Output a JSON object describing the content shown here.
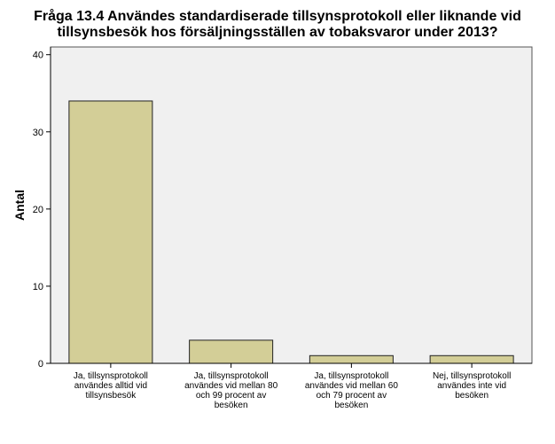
{
  "colors": {
    "plot_background": "#f0f0f0",
    "bar_fill": "#d3ce97",
    "bar_stroke": "#222222",
    "axis": "#000000"
  },
  "chart_data": {
    "type": "bar",
    "title_lines": [
      "Fråga 13.4 Användes standardiserade tillsynsprotokoll eller liknande vid",
      "tillsynsbesök hos försäljningsställen av tobaksvaror under 2013?"
    ],
    "ylabel": "Antal",
    "xlabel": "",
    "ylim": [
      0,
      41
    ],
    "yticks": [
      0,
      10,
      20,
      30,
      40
    ],
    "grid": false,
    "categories": [
      [
        "Ja, tillsynsprotokoll",
        "användes alltid vid",
        "tillsynsbesök"
      ],
      [
        "Ja, tillsynsprotokoll",
        "användes vid mellan 80",
        "och 99 procent av",
        "besöken"
      ],
      [
        "Ja, tillsynsprotokoll",
        "användes vid mellan 60",
        "och 79 procent av",
        "besöken"
      ],
      [
        "Nej, tillsynsprotokoll",
        "användes inte vid",
        "besöken"
      ]
    ],
    "values": [
      34,
      3,
      1,
      1
    ]
  }
}
